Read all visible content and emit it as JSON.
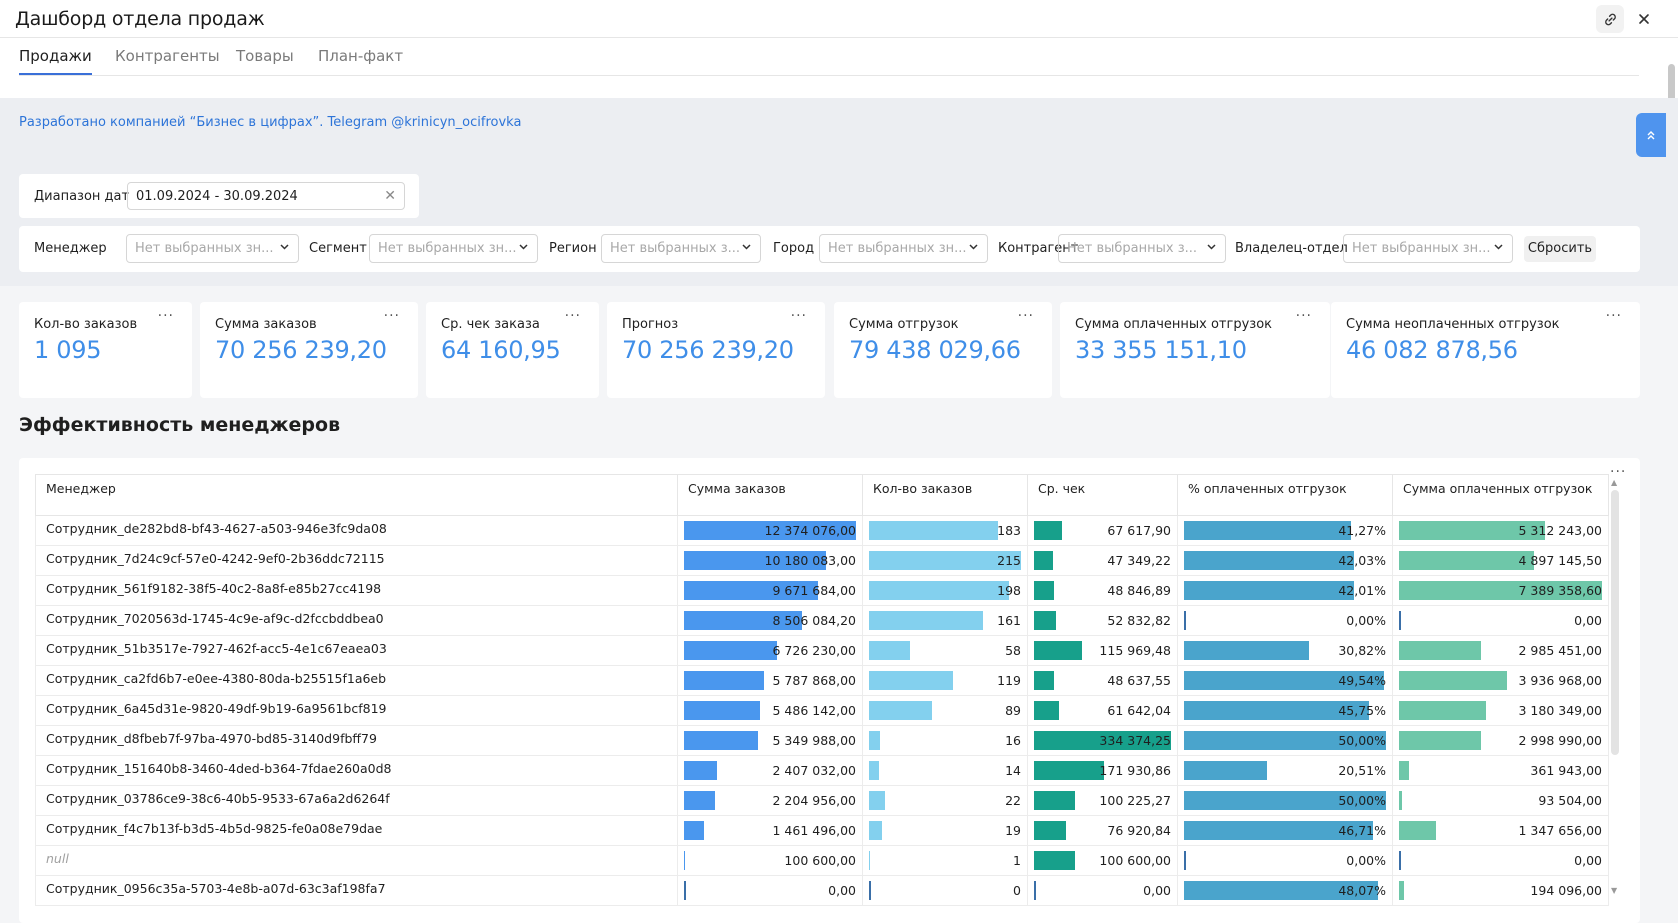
{
  "title": "Дашборд отдела продаж",
  "tabs": [
    {
      "label": "Продажи",
      "active": true
    },
    {
      "label": "Контрагенты",
      "active": false
    },
    {
      "label": "Товары",
      "active": false
    },
    {
      "label": "План-факт",
      "active": false
    }
  ],
  "credit": "Разработано компанией “Бизнес в цифрах”. Telegram @krinicyn_ocifrovka",
  "date_filter": {
    "label": "Диапазон дат",
    "value": "01.09.2024 - 30.09.2024"
  },
  "filters": [
    {
      "label": "Менеджер",
      "placeholder": "Нет выбранных зн..."
    },
    {
      "label": "Сегмент",
      "placeholder": "Нет выбранных зн..."
    },
    {
      "label": "Регион",
      "placeholder": "Нет выбранных з..."
    },
    {
      "label": "Город",
      "placeholder": "Нет выбранных зн..."
    },
    {
      "label": "Контрагент",
      "placeholder": "Нет выбранных з..."
    },
    {
      "label": "Владелец-отдел",
      "placeholder": "Нет выбранных зн..."
    }
  ],
  "reset_label": "Сбросить",
  "kpis": [
    {
      "label": "Кол-во заказов",
      "value": "1 095"
    },
    {
      "label": "Сумма заказов",
      "value": "70 256 239,20"
    },
    {
      "label": "Ср. чек заказа",
      "value": "64 160,95"
    },
    {
      "label": "Прогноз",
      "value": "70 256 239,20"
    },
    {
      "label": "Сумма отгрузок",
      "value": "79 438 029,66"
    },
    {
      "label": "Сумма оплаченных отгрузок",
      "value": "33 355 151,10"
    },
    {
      "label": "Сумма неоплаченных отгрузок",
      "value": "46 082 878,56"
    }
  ],
  "section_title": "Эффективность менеджеров",
  "table": {
    "columns": [
      "Менеджер",
      "Сумма заказов",
      "Кол-во заказов",
      "Ср. чек",
      "% оплаченных отгрузок",
      "Сумма оплаченных отгрузок"
    ],
    "bar_colors": [
      "#4a97ee",
      "#83d0ee",
      "#17a08b",
      "#4aa4cc",
      "#6ec7a9"
    ],
    "rows": [
      {
        "manager": "Сотрудник_de282bd8-bf43-4627-a503-946e3fc9da08",
        "sum": "12 374 076,00",
        "sum_v": 12374076,
        "count": "183",
        "count_v": 183,
        "avg": "67 617,90",
        "avg_v": 67617.9,
        "pct": "41,27%",
        "pct_v": 41.27,
        "paid": "5 312 243,00",
        "paid_v": 5312243
      },
      {
        "manager": "Сотрудник_7d24c9cf-57e0-4242-9ef0-2b36ddc72115",
        "sum": "10 180 083,00",
        "sum_v": 10180083,
        "count": "215",
        "count_v": 215,
        "avg": "47 349,22",
        "avg_v": 47349.22,
        "pct": "42,03%",
        "pct_v": 42.03,
        "paid": "4 897 145,50",
        "paid_v": 4897145.5
      },
      {
        "manager": "Сотрудник_561f9182-38f5-40c2-8a8f-e85b27cc4198",
        "sum": "9 671 684,00",
        "sum_v": 9671684,
        "count": "198",
        "count_v": 198,
        "avg": "48 846,89",
        "avg_v": 48846.89,
        "pct": "42,01%",
        "pct_v": 42.01,
        "paid": "7 389 358,60",
        "paid_v": 7389358.6
      },
      {
        "manager": "Сотрудник_7020563d-1745-4c9e-af9c-d2fccbddbea0",
        "sum": "8 506 084,20",
        "sum_v": 8506084.2,
        "count": "161",
        "count_v": 161,
        "avg": "52 832,82",
        "avg_v": 52832.82,
        "pct": "0,00%",
        "pct_v": 0,
        "paid": "0,00",
        "paid_v": 0
      },
      {
        "manager": "Сотрудник_51b3517e-7927-462f-acc5-4e1c67eaea03",
        "sum": "6 726 230,00",
        "sum_v": 6726230,
        "count": "58",
        "count_v": 58,
        "avg": "115 969,48",
        "avg_v": 115969.48,
        "pct": "30,82%",
        "pct_v": 30.82,
        "paid": "2 985 451,00",
        "paid_v": 2985451
      },
      {
        "manager": "Сотрудник_ca2fd6b7-e0ee-4380-80da-b25515f1a6eb",
        "sum": "5 787 868,00",
        "sum_v": 5787868,
        "count": "119",
        "count_v": 119,
        "avg": "48 637,55",
        "avg_v": 48637.55,
        "pct": "49,54%",
        "pct_v": 49.54,
        "paid": "3 936 968,00",
        "paid_v": 3936968
      },
      {
        "manager": "Сотрудник_6a45d31e-9820-49df-9b19-6a9561bcf819",
        "sum": "5 486 142,00",
        "sum_v": 5486142,
        "count": "89",
        "count_v": 89,
        "avg": "61 642,04",
        "avg_v": 61642.04,
        "pct": "45,75%",
        "pct_v": 45.75,
        "paid": "3 180 349,00",
        "paid_v": 3180349
      },
      {
        "manager": "Сотрудник_d8fbeb7f-97ba-4970-bd85-3140d9fbff79",
        "sum": "5 349 988,00",
        "sum_v": 5349988,
        "count": "16",
        "count_v": 16,
        "avg": "334 374,25",
        "avg_v": 334374.25,
        "pct": "50,00%",
        "pct_v": 50,
        "paid": "2 998 990,00",
        "paid_v": 2998990
      },
      {
        "manager": "Сотрудник_151640b8-3460-4ded-b364-7fdae260a0d8",
        "sum": "2 407 032,00",
        "sum_v": 2407032,
        "count": "14",
        "count_v": 14,
        "avg": "171 930,86",
        "avg_v": 171930.86,
        "pct": "20,51%",
        "pct_v": 20.51,
        "paid": "361 943,00",
        "paid_v": 361943
      },
      {
        "manager": "Сотрудник_03786ce9-38c6-40b5-9533-67a6a2d6264f",
        "sum": "2 204 956,00",
        "sum_v": 2204956,
        "count": "22",
        "count_v": 22,
        "avg": "100 225,27",
        "avg_v": 100225.27,
        "pct": "50,00%",
        "pct_v": 50,
        "paid": "93 504,00",
        "paid_v": 93504
      },
      {
        "manager": "Сотрудник_f4c7b13f-b3d5-4b5d-9825-fe0a08e79dae",
        "sum": "1 461 496,00",
        "sum_v": 1461496,
        "count": "19",
        "count_v": 19,
        "avg": "76 920,84",
        "avg_v": 76920.84,
        "pct": "46,71%",
        "pct_v": 46.71,
        "paid": "1 347 656,00",
        "paid_v": 1347656
      },
      {
        "manager": "null",
        "sum": "100 600,00",
        "sum_v": 100600,
        "count": "1",
        "count_v": 1,
        "avg": "100 600,00",
        "avg_v": 100600,
        "pct": "0,00%",
        "pct_v": 0,
        "paid": "0,00",
        "paid_v": 0
      },
      {
        "manager": "Сотрудник_0956c35a-5703-4e8b-a07d-63c3af198fa7",
        "sum": "0,00",
        "sum_v": 0,
        "count": "0",
        "count_v": 0,
        "avg": "0,00",
        "avg_v": 0,
        "pct": "48,07%",
        "pct_v": 48.07,
        "paid": "194 096,00",
        "paid_v": 194096
      }
    ]
  }
}
